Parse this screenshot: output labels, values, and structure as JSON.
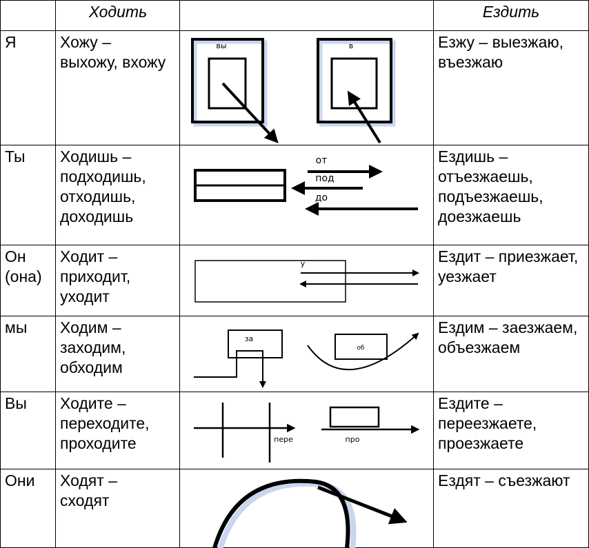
{
  "table": {
    "header": {
      "walk": "Ходить",
      "ride": "Ездить"
    },
    "rows": [
      {
        "pronoun": [
          "Я"
        ],
        "walk": [
          "Хожу –",
          "выхожу, вхожу"
        ],
        "labels": [
          "вы",
          "в"
        ],
        "ride": [
          "Езжу – выезжаю,",
          "въезжаю"
        ]
      },
      {
        "pronoun": [
          "Ты"
        ],
        "walk": [
          "Ходишь –",
          "подходишь,",
          "отходишь,",
          "доходишь"
        ],
        "labels": [
          "от",
          "под",
          "до"
        ],
        "ride": [
          "Ездишь –",
          "отъезжаешь,",
          "подъезжаешь,",
          "доезжаешь"
        ]
      },
      {
        "pronoun": [
          "Он",
          "(она)"
        ],
        "walk": [
          "Ходит –",
          "приходит,",
          "уходит"
        ],
        "labels": [
          "у"
        ],
        "ride": [
          "Ездит – приезжает,",
          "уезжает"
        ]
      },
      {
        "pronoun": [
          "мы"
        ],
        "walk": [
          "Ходим –",
          "заходим,",
          "обходим"
        ],
        "labels": [
          "за",
          "об"
        ],
        "ride": [
          "Ездим – заезжаем,",
          "объезжаем"
        ]
      },
      {
        "pronoun": [
          "Вы"
        ],
        "walk": [
          "Ходите –",
          "переходите,",
          "проходите"
        ],
        "labels": [
          "пере",
          "про"
        ],
        "ride": [
          "Ездите –",
          "переезжаете,",
          "проезжаете"
        ]
      },
      {
        "pronoun": [
          "Они"
        ],
        "walk": [
          "Ходят –",
          "сходят"
        ],
        "labels": [],
        "ride": [
          "Ездят – съезжают"
        ]
      }
    ]
  }
}
